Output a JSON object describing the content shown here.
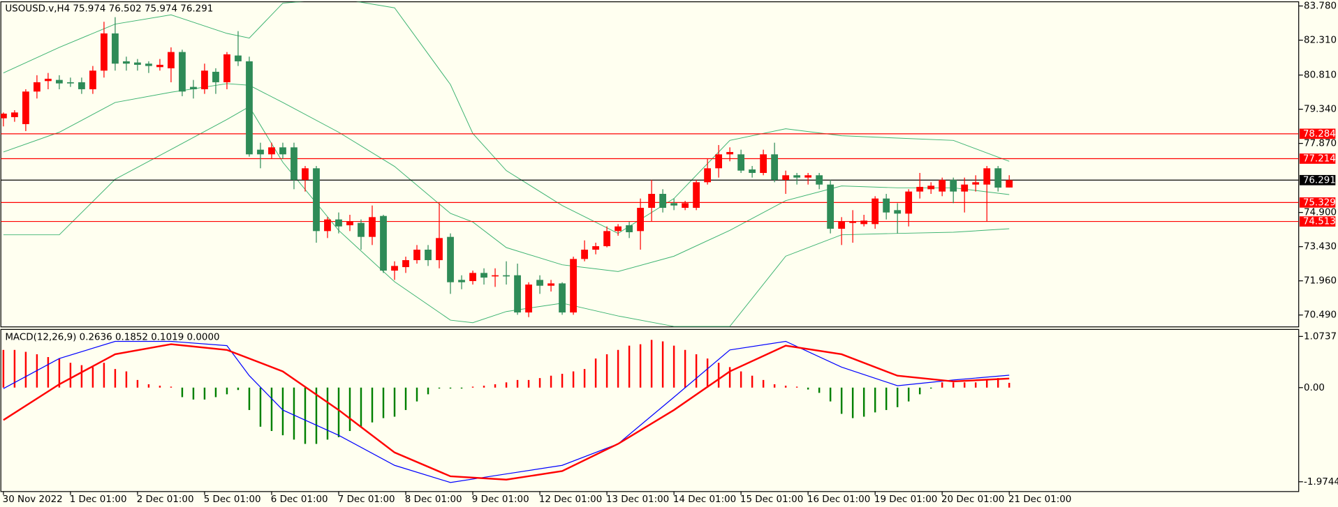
{
  "chart_data": [
    {
      "type": "candlestick",
      "title": "USOUSD.v,H4  75.974 76.502 75.974 76.291",
      "categories": [
        "30 Nov 2022",
        null,
        null,
        null,
        null,
        null,
        "1 Dec 01:00",
        null,
        null,
        null,
        null,
        null,
        "2 Dec 01:00",
        null,
        null,
        null,
        null,
        null,
        "5 Dec 01:00",
        null,
        null,
        null,
        null,
        null,
        "6 Dec 01:00",
        null,
        null,
        null,
        null,
        null,
        "7 Dec 01:00",
        null,
        null,
        null,
        null,
        null,
        "8 Dec 01:00",
        null,
        null,
        null,
        null,
        null,
        "9 Dec 01:00",
        null,
        null,
        null,
        null,
        null,
        "12 Dec 01:00",
        null,
        null,
        null,
        null,
        null,
        "13 Dec 01:00",
        null,
        null,
        null,
        null,
        null,
        "14 Dec 01:00",
        null,
        null,
        null,
        null,
        null,
        "15 Dec 01:00",
        null,
        null,
        null,
        null,
        null,
        "16 Dec 01:00",
        null,
        null,
        null,
        null,
        null,
        "19 Dec 01:00",
        null,
        null,
        null,
        null,
        null,
        "20 Dec 01:00",
        null,
        null,
        null,
        null,
        null,
        "21 Dec 01:00"
      ],
      "open": [
        78.95,
        79.0,
        78.7,
        80.1,
        80.55,
        80.6,
        80.5,
        80.5,
        80.2,
        81.0,
        82.6,
        81.4,
        81.35,
        81.3,
        81.15,
        81.1,
        81.8,
        80.3,
        80.2,
        80.95,
        80.5,
        81.65,
        81.4,
        77.6,
        77.4,
        77.7,
        77.7,
        76.3,
        76.8,
        74.1,
        74.6,
        74.35,
        74.45,
        73.85,
        74.75,
        72.4,
        72.55,
        72.85,
        73.3,
        72.85,
        73.85,
        72.0,
        71.95,
        72.3,
        72.15,
        72.2,
        72.2,
        70.6,
        72.0,
        71.75,
        71.85,
        70.6,
        72.9,
        73.3,
        73.45,
        74.1,
        74.35,
        74.1,
        75.1,
        75.7,
        75.3,
        75.1,
        75.1,
        76.2,
        76.8,
        77.4,
        77.4,
        76.75,
        76.6,
        77.4,
        76.3,
        76.5,
        76.4,
        76.5,
        76.1,
        74.2,
        74.45,
        74.4,
        74.4,
        75.5,
        75.0,
        74.85,
        75.8,
        75.9,
        75.8,
        76.3,
        75.8,
        76.1,
        76.1,
        76.8,
        75.974
      ],
      "high": [
        79.2,
        79.3,
        80.2,
        80.8,
        80.9,
        80.8,
        80.7,
        80.7,
        81.2,
        83.1,
        83.3,
        81.6,
        81.5,
        81.4,
        81.5,
        82.0,
        81.9,
        80.6,
        81.3,
        81.1,
        81.8,
        82.7,
        81.6,
        77.9,
        77.9,
        77.9,
        77.9,
        76.9,
        76.9,
        74.7,
        74.9,
        74.8,
        74.6,
        75.2,
        74.8,
        72.8,
        73.0,
        73.5,
        73.5,
        75.3,
        74.0,
        72.2,
        72.4,
        72.5,
        72.5,
        72.8,
        72.7,
        71.9,
        72.2,
        72.0,
        71.9,
        73.0,
        73.7,
        73.6,
        74.3,
        74.4,
        74.5,
        75.5,
        76.3,
        75.9,
        75.5,
        75.4,
        76.3,
        77.2,
        77.8,
        77.7,
        77.6,
        76.9,
        77.6,
        77.9,
        76.7,
        76.6,
        76.6,
        76.6,
        76.3,
        74.7,
        75.0,
        74.8,
        75.6,
        75.7,
        75.3,
        75.9,
        76.6,
        76.2,
        76.4,
        76.4,
        76.4,
        76.5,
        76.9,
        76.9,
        76.502
      ],
      "low": [
        78.6,
        78.8,
        78.4,
        79.8,
        80.2,
        80.2,
        80.3,
        80.0,
        80.0,
        80.7,
        81.0,
        81.0,
        81.0,
        80.9,
        81.0,
        80.5,
        79.9,
        79.8,
        80.0,
        80.0,
        80.2,
        81.2,
        77.3,
        76.8,
        77.2,
        77.2,
        75.9,
        75.8,
        73.6,
        73.8,
        74.0,
        74.1,
        73.3,
        73.5,
        72.3,
        72.0,
        72.3,
        72.7,
        72.6,
        72.5,
        71.4,
        71.6,
        71.8,
        71.8,
        71.7,
        71.8,
        70.5,
        70.4,
        71.4,
        71.5,
        70.5,
        70.5,
        72.8,
        73.1,
        73.4,
        73.9,
        73.8,
        73.3,
        74.5,
        74.9,
        75.0,
        75.0,
        75.0,
        76.1,
        76.4,
        77.1,
        76.6,
        76.4,
        76.5,
        76.2,
        75.7,
        76.1,
        76.1,
        75.9,
        74.0,
        73.5,
        73.6,
        74.3,
        74.2,
        74.6,
        74.0,
        74.3,
        75.5,
        75.7,
        75.6,
        75.3,
        74.9,
        75.8,
        74.5,
        75.8,
        75.974
      ],
      "close": [
        79.15,
        79.2,
        80.1,
        80.5,
        80.65,
        80.45,
        80.45,
        80.2,
        81.0,
        82.6,
        81.3,
        81.3,
        81.25,
        81.2,
        81.25,
        81.8,
        80.1,
        80.2,
        81.0,
        80.5,
        81.7,
        81.4,
        77.4,
        77.4,
        77.7,
        77.4,
        76.3,
        76.8,
        74.1,
        74.6,
        74.3,
        74.5,
        73.85,
        74.7,
        72.4,
        72.6,
        72.85,
        73.3,
        72.85,
        73.8,
        71.9,
        71.9,
        72.3,
        72.1,
        72.2,
        72.15,
        70.6,
        71.8,
        71.75,
        71.85,
        70.6,
        72.9,
        73.3,
        73.45,
        74.1,
        74.3,
        74.05,
        75.1,
        75.7,
        75.1,
        75.2,
        75.3,
        76.2,
        76.8,
        77.4,
        77.5,
        76.7,
        76.6,
        77.4,
        76.3,
        76.5,
        76.4,
        76.5,
        76.1,
        74.2,
        74.5,
        74.5,
        74.55,
        75.5,
        74.9,
        74.85,
        75.8,
        76.0,
        76.05,
        76.3,
        75.8,
        76.1,
        76.2,
        76.8,
        75.97,
        76.291
      ],
      "up_color": "#ff0000",
      "down_color": "#2e8b57",
      "bands": {
        "color": "#3cb371",
        "x": [
          0,
          5,
          10,
          15,
          20,
          22,
          25,
          30,
          35,
          40,
          42,
          45,
          50,
          55,
          60,
          65,
          70,
          75,
          80,
          85,
          90
        ],
        "upper": [
          80.9,
          82.0,
          83.0,
          83.4,
          82.6,
          82.4,
          83.9,
          84.1,
          83.7,
          80.4,
          78.3,
          76.7,
          75.2,
          74.0,
          75.5,
          78.0,
          78.5,
          78.2,
          78.1,
          78.0,
          77.1
        ],
        "middle": [
          77.5,
          78.35,
          79.63,
          80.07,
          80.44,
          80.37,
          79.63,
          78.35,
          76.88,
          74.86,
          74.49,
          73.39,
          72.65,
          72.36,
          73.02,
          74.13,
          75.41,
          76.04,
          75.96,
          75.96,
          75.67
        ],
        "lower": [
          73.94,
          73.94,
          76.33,
          77.61,
          78.9,
          79.45,
          77.06,
          74.13,
          71.92,
          70.27,
          70.16,
          70.64,
          71.0,
          70.45,
          70.0,
          70.0,
          73.02,
          73.94,
          74.0,
          74.05,
          74.2
        ]
      },
      "levels": [
        {
          "value": 78.284,
          "color": "#ff0000"
        },
        {
          "value": 77.214,
          "color": "#ff0000"
        },
        {
          "value": 76.291,
          "color": "#000000"
        },
        {
          "value": 75.329,
          "color": "#ff0000"
        },
        {
          "value": 74.513,
          "color": "#ff0000"
        }
      ],
      "ylim": [
        69.98,
        83.96
      ],
      "yticks": [
        {
          "value": 83.78,
          "label": "83.780"
        },
        {
          "value": 82.31,
          "label": "82.310"
        },
        {
          "value": 80.81,
          "label": "80.810"
        },
        {
          "value": 79.34,
          "label": "79.340"
        },
        {
          "value": 77.87,
          "label": "77.870"
        },
        {
          "value": 74.9,
          "label": "74.900"
        },
        {
          "value": 73.43,
          "label": "73.430"
        },
        {
          "value": 71.96,
          "label": "71.960"
        },
        {
          "value": 70.49,
          "label": "70.490"
        }
      ]
    },
    {
      "type": "macd",
      "title": "MACD(12,26,9) 0.2636 0.1852 0.1019 0.0000",
      "values": [
        0.79,
        0.79,
        0.75,
        0.7,
        0.64,
        0.61,
        0.52,
        0.47,
        0.43,
        0.52,
        0.39,
        0.34,
        0.16,
        0.07,
        0.04,
        0.02,
        -0.2,
        -0.25,
        -0.25,
        -0.2,
        -0.14,
        -0.05,
        -0.47,
        -0.82,
        -0.91,
        -1.0,
        -1.09,
        -1.18,
        -1.18,
        -1.09,
        -1.04,
        -0.91,
        -0.82,
        -0.73,
        -0.64,
        -0.61,
        -0.47,
        -0.29,
        -0.14,
        -0.02,
        -0.02,
        -0.02,
        0.02,
        0.04,
        0.07,
        0.11,
        0.16,
        0.16,
        0.2,
        0.25,
        0.29,
        0.34,
        0.39,
        0.61,
        0.7,
        0.79,
        0.88,
        0.91,
        1.0,
        0.97,
        0.88,
        0.79,
        0.7,
        0.61,
        0.52,
        0.43,
        0.34,
        0.25,
        0.16,
        0.07,
        0.04,
        0.02,
        -0.04,
        -0.11,
        -0.29,
        -0.55,
        -0.64,
        -0.61,
        -0.52,
        -0.47,
        -0.41,
        -0.29,
        -0.14,
        -0.02,
        0.11,
        0.11,
        0.11,
        0.11,
        0.16,
        0.2,
        0.1
      ],
      "up_color": "#ff0000",
      "down_color": "#008000",
      "main": {
        "color": "#0000ff",
        "x": [
          0,
          5,
          10,
          15,
          20,
          22,
          25,
          30,
          35,
          40,
          45,
          50,
          55,
          60,
          65,
          70,
          75,
          80,
          85,
          90
        ],
        "values": [
          -0.02,
          0.61,
          0.97,
          0.97,
          0.88,
          0.25,
          -0.47,
          -1.0,
          -1.63,
          -1.99,
          -1.81,
          -1.63,
          -1.18,
          -0.2,
          0.79,
          0.97,
          0.43,
          0.04,
          0.16,
          0.26
        ]
      },
      "signal": {
        "color": "#ff0000",
        "x": [
          0,
          5,
          10,
          15,
          20,
          25,
          30,
          35,
          40,
          45,
          50,
          55,
          60,
          65,
          70,
          75,
          80,
          85,
          90
        ],
        "values": [
          -0.68,
          0.07,
          0.7,
          0.91,
          0.79,
          0.34,
          -0.47,
          -1.36,
          -1.86,
          -1.93,
          -1.75,
          -1.18,
          -0.47,
          0.34,
          0.88,
          0.7,
          0.25,
          0.13,
          0.19
        ]
      },
      "ylim": [
        -2.18,
        1.22
      ],
      "yticks": [
        1.0737,
        {
          "value": 0,
          "label": "0.00"
        },
        -1.9744
      ]
    }
  ]
}
